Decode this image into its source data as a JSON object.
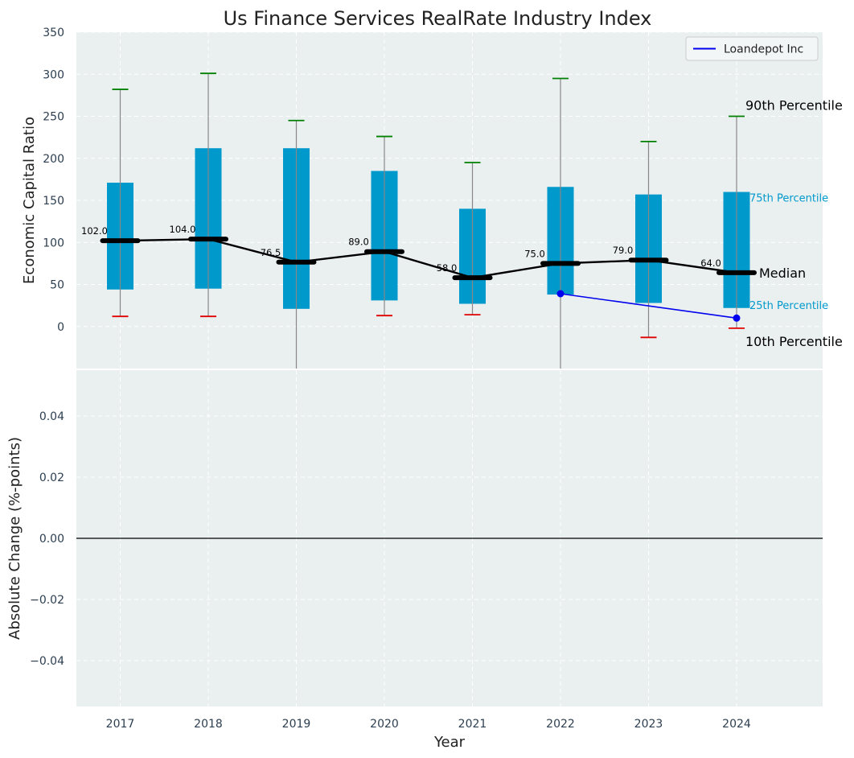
{
  "title": "Us Finance Services RealRate Industry Index",
  "colors": {
    "panel_bg": "#eaeff0",
    "box": "#0099cc",
    "median": "#000000",
    "p90_cap": "#008000",
    "p10_cap": "#e00000",
    "whisker": "#888888",
    "company": "#0000ee",
    "small_label": "#0099cc"
  },
  "chart_data": [
    {
      "type": "box",
      "ylabel": "Economic Capital Ratio",
      "ylim": [
        -50,
        350
      ],
      "yticks": [
        "0",
        "50",
        "100",
        "150",
        "200",
        "250",
        "300",
        "350"
      ],
      "categories": [
        "2017",
        "2018",
        "2019",
        "2020",
        "2021",
        "2022",
        "2023",
        "2024"
      ],
      "series": [
        {
          "p10": [
            12,
            12,
            -55,
            13,
            14,
            -55,
            -13,
            -2
          ],
          "p25": [
            44,
            45,
            21,
            31,
            27,
            38,
            28,
            22
          ],
          "median": [
            102.0,
            104.0,
            76.5,
            89.0,
            58.0,
            75.0,
            79.0,
            64.0
          ],
          "p75": [
            171,
            212,
            212,
            185,
            140,
            166,
            157,
            160
          ],
          "p90": [
            282,
            301,
            245,
            226,
            195,
            295,
            220,
            250
          ]
        },
        {
          "name": "Loandepot Inc",
          "x": [
            "2022",
            "2024"
          ],
          "values": [
            39,
            10
          ]
        }
      ],
      "median_labels": [
        "102.0",
        "104.0",
        "76.5",
        "89.0",
        "58.0",
        "75.0",
        "79.0",
        "64.0"
      ],
      "legend": {
        "entries": [
          "Loandepot Inc"
        ],
        "placement": "top-right"
      },
      "annotations": {
        "p90": "90th Percentile",
        "p75": "75th Percentile",
        "median": "Median",
        "p25": "25th Percentile",
        "p10": "10th Percentile"
      },
      "grid": true
    },
    {
      "type": "line",
      "xlabel": "Year",
      "ylabel": "Absolute Change (%-points)",
      "ylim": [
        -0.055,
        0.055
      ],
      "yticks": [
        "−0.04",
        "−0.02",
        "0.00",
        "0.02",
        "0.04"
      ],
      "categories": [
        "2017",
        "2018",
        "2019",
        "2020",
        "2021",
        "2022",
        "2023",
        "2024"
      ],
      "zero_line": true,
      "grid": true
    }
  ]
}
